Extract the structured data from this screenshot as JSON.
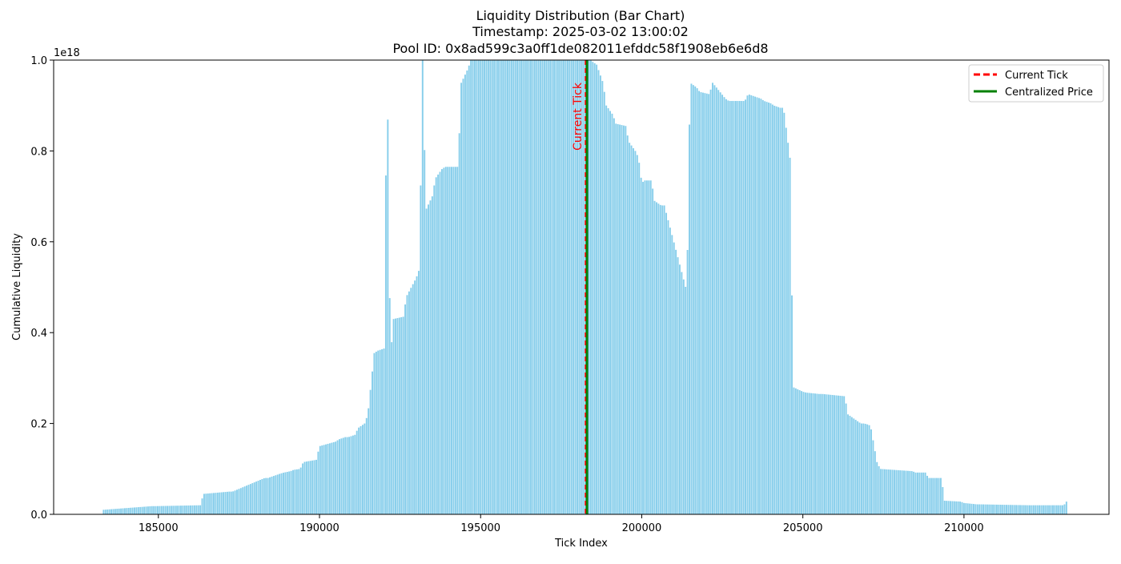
{
  "chart_data": {
    "type": "bar",
    "title_lines": [
      "Liquidity Distribution (Bar Chart)",
      "Timestamp: 2025-03-02 13:00:02",
      "Pool ID: 0x8ad599c3a0ff1de082011efddc58f1908eb6e6d8"
    ],
    "xlabel": "Tick Index",
    "ylabel": "Cumulative Liquidity",
    "y_offset_label": "1e18",
    "xlim": [
      181750,
      214500
    ],
    "ylim": [
      0,
      1.0
    ],
    "x_ticks": [
      185000,
      190000,
      195000,
      200000,
      205000,
      210000
    ],
    "y_ticks": [
      0.0,
      0.2,
      0.4,
      0.6,
      0.8,
      1.0
    ],
    "x_tick_labels": [
      "185000",
      "190000",
      "195000",
      "200000",
      "205000",
      "210000"
    ],
    "y_tick_labels": [
      "0.0",
      "0.2",
      "0.4",
      "0.6",
      "0.8",
      "1.0"
    ],
    "bar_color": "#87CEEB",
    "bar_width": 60,
    "current_tick": 198250,
    "current_tick_color": "#ff0000",
    "centralized_price_tick": 198300,
    "centralized_price_color": "#008000",
    "annotation": "Current Tick",
    "legend": {
      "position": "top-right",
      "entries": [
        {
          "label": "Current Tick",
          "style": "dashed",
          "color": "#ff0000"
        },
        {
          "label": "Centralized Price",
          "style": "solid",
          "color": "#008000"
        }
      ]
    },
    "grid": false,
    "profile": {
      "description_units": "tick index -> liquidity (x1e18)",
      "x": [
        183300,
        184800,
        184900,
        186300,
        186400,
        187200,
        187300,
        188300,
        188400,
        188800,
        188900,
        189100,
        189200,
        189400,
        189500,
        189900,
        190000,
        190500,
        190600,
        190800,
        190900,
        191100,
        191200,
        191400,
        191500,
        191700,
        191800,
        192000,
        192100,
        192200,
        192300,
        192600,
        192700,
        193000,
        193100,
        193200,
        193300,
        193500,
        193600,
        193800,
        193900,
        194300,
        194400,
        194600,
        194700,
        194900,
        195000,
        198200,
        198400,
        198600,
        198700,
        198800,
        198900,
        199100,
        199200,
        199500,
        199600,
        199800,
        199900,
        200000,
        200100,
        200300,
        200400,
        200600,
        200700,
        201400,
        201500,
        201700,
        201800,
        202100,
        202200,
        202600,
        202700,
        203200,
        203300,
        203700,
        203800,
        204000,
        204100,
        204300,
        204400,
        204600,
        204700,
        205000,
        205100,
        205500,
        205600,
        206300,
        206400,
        206800,
        206900,
        207000,
        207100,
        207300,
        207400,
        208400,
        208500,
        208800,
        208900,
        209300,
        209400,
        209900,
        210000,
        210400,
        210500,
        212000,
        212100,
        213100,
        213200
      ],
      "y": [
        0.01,
        0.018,
        0.018,
        0.02,
        0.045,
        0.05,
        0.05,
        0.08,
        0.08,
        0.09,
        0.092,
        0.095,
        0.098,
        0.1,
        0.115,
        0.12,
        0.15,
        0.16,
        0.165,
        0.17,
        0.17,
        0.175,
        0.19,
        0.2,
        0.22,
        0.355,
        0.36,
        0.365,
        1.0,
        0.345,
        0.43,
        0.435,
        0.48,
        0.52,
        0.54,
        1.0,
        0.67,
        0.7,
        0.74,
        0.76,
        0.765,
        0.765,
        0.95,
        0.98,
        1.0,
        1.0,
        1.0,
        1.0,
        1.0,
        0.99,
        0.97,
        0.95,
        0.9,
        0.88,
        0.86,
        0.855,
        0.82,
        0.8,
        0.785,
        0.73,
        0.735,
        0.735,
        0.69,
        0.68,
        0.68,
        0.49,
        0.95,
        0.94,
        0.93,
        0.925,
        0.95,
        0.915,
        0.91,
        0.91,
        0.925,
        0.915,
        0.91,
        0.905,
        0.9,
        0.895,
        0.895,
        0.785,
        0.28,
        0.27,
        0.268,
        0.265,
        0.265,
        0.26,
        0.22,
        0.2,
        0.2,
        0.198,
        0.195,
        0.115,
        0.1,
        0.095,
        0.092,
        0.092,
        0.08,
        0.08,
        0.03,
        0.028,
        0.025,
        0.022,
        0.022,
        0.02,
        0.02,
        0.02,
        0.03
      ]
    }
  }
}
